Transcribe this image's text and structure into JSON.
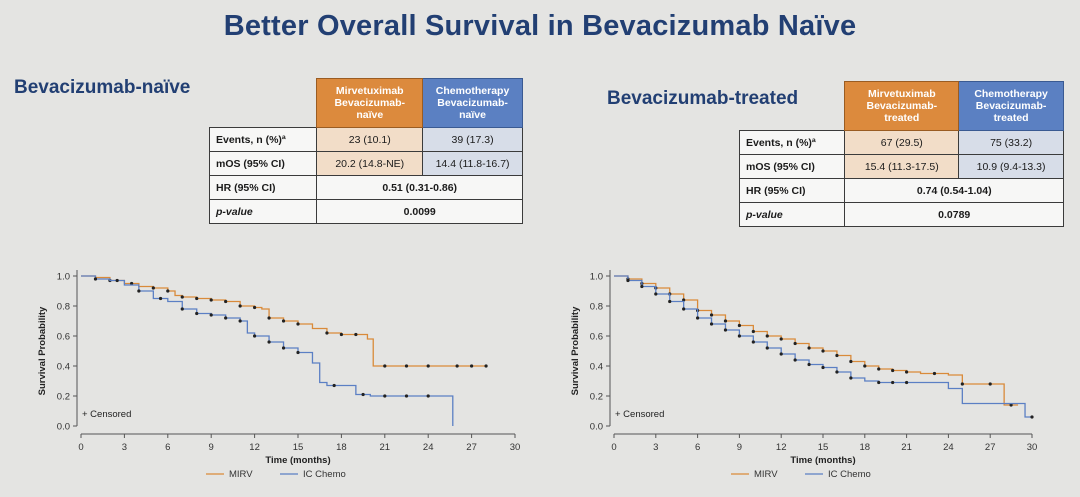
{
  "title": "Better Overall Survival in Bevacizumab Naïve",
  "colors": {
    "mirv": "#d98a3a",
    "chemo": "#5b7fc4",
    "title": "#223f73",
    "bg": "#e4e4e2"
  },
  "left": {
    "section_title": "Bevacizumab-naïve",
    "table": {
      "header_mirv": [
        "Mirvetuximab",
        "Bevacizumab-",
        "naïve"
      ],
      "header_chemo": [
        "Chemotherapy",
        "Bevacizumab-",
        "naïve"
      ],
      "rows": [
        {
          "label": "Events, n (%)ª",
          "mirv": "23 (10.1)",
          "chemo": "39 (17.3)"
        },
        {
          "label": "mOS (95% CI)",
          "mirv": "20.2 (14.8-NE)",
          "chemo": "14.4 (11.8-16.7)"
        }
      ],
      "hr_label": "HR (95% CI)",
      "hr_value": "0.51 (0.31-0.86)",
      "p_label": "p-value",
      "p_value": "0.0099"
    }
  },
  "right": {
    "section_title": "Bevacizumab-treated",
    "table": {
      "header_mirv": [
        "Mirvetuximab",
        "Bevacizumab-",
        "treated"
      ],
      "header_chemo": [
        "Chemotherapy",
        "Bevacizumab-",
        "treated"
      ],
      "rows": [
        {
          "label": "Events, n (%)ª",
          "mirv": "67 (29.5)",
          "chemo": "75 (33.2)"
        },
        {
          "label": "mOS (95% CI)",
          "mirv": "15.4 (11.3-17.5)",
          "chemo": "10.9 (9.4-13.3)"
        }
      ],
      "hr_label": "HR (95% CI)",
      "hr_value": "0.74 (0.54-1.04)",
      "p_label": "p-value",
      "p_value": "0.0789"
    }
  },
  "chart_data": [
    {
      "type": "line",
      "title": "Bevacizumab-naïve",
      "xlabel": "Time (months)",
      "ylabel": "Survival Probability",
      "xlim": [
        0,
        30
      ],
      "ylim": [
        0,
        1.0
      ],
      "xticks": [
        0,
        3,
        6,
        9,
        12,
        15,
        18,
        21,
        24,
        27,
        30
      ],
      "yticks": [
        0.0,
        0.2,
        0.4,
        0.6,
        0.8,
        1.0
      ],
      "censored_label": "Censored",
      "legend": [
        "MIRV",
        "IC Chemo"
      ],
      "series": [
        {
          "name": "MIRV",
          "color": "#d98a3a",
          "x": [
            0,
            1,
            2,
            3,
            4,
            5,
            6,
            6.5,
            7,
            8,
            9,
            10,
            11,
            12,
            12.5,
            13,
            14,
            15,
            16,
            17,
            18,
            19,
            19.8,
            20.2,
            21,
            24,
            26,
            28
          ],
          "y": [
            1.0,
            0.99,
            0.97,
            0.95,
            0.93,
            0.92,
            0.9,
            0.87,
            0.86,
            0.85,
            0.84,
            0.83,
            0.8,
            0.79,
            0.78,
            0.72,
            0.7,
            0.68,
            0.65,
            0.62,
            0.61,
            0.61,
            0.58,
            0.4,
            0.4,
            0.4,
            0.4,
            0.4
          ],
          "censored_x": [
            2,
            3.5,
            5,
            6,
            7,
            8,
            9,
            10,
            11,
            12,
            13,
            14,
            15,
            17,
            18,
            19,
            21,
            22.5,
            24,
            26,
            27,
            28
          ]
        },
        {
          "name": "IC Chemo",
          "color": "#5b7fc4",
          "x": [
            0,
            1,
            2,
            3,
            4,
            5,
            6,
            7,
            8,
            9,
            10,
            11,
            11.5,
            12,
            13,
            14,
            15,
            16,
            16.5,
            17,
            18,
            19,
            20,
            21,
            23,
            25,
            25.6,
            25.7
          ],
          "y": [
            1.0,
            0.98,
            0.97,
            0.94,
            0.9,
            0.85,
            0.83,
            0.78,
            0.75,
            0.74,
            0.72,
            0.7,
            0.62,
            0.6,
            0.56,
            0.52,
            0.49,
            0.42,
            0.29,
            0.27,
            0.27,
            0.21,
            0.2,
            0.2,
            0.2,
            0.2,
            0.2,
            0.0
          ],
          "censored_x": [
            1,
            2.5,
            4,
            5.5,
            7,
            8,
            9,
            10,
            11,
            12,
            13,
            14,
            15,
            17.5,
            19.5,
            21,
            22.5,
            24
          ]
        }
      ]
    },
    {
      "type": "line",
      "title": "Bevacizumab-treated",
      "xlabel": "Time (months)",
      "ylabel": "Survival Probability",
      "xlim": [
        0,
        30
      ],
      "ylim": [
        0,
        1.0
      ],
      "xticks": [
        0,
        3,
        6,
        9,
        12,
        15,
        18,
        21,
        24,
        27,
        30
      ],
      "yticks": [
        0.0,
        0.2,
        0.4,
        0.6,
        0.8,
        1.0
      ],
      "censored_label": "Censored",
      "legend": [
        "MIRV",
        "IC Chemo"
      ],
      "series": [
        {
          "name": "MIRV",
          "color": "#d98a3a",
          "x": [
            0,
            1,
            2,
            3,
            4,
            5,
            6,
            7,
            8,
            9,
            10,
            11,
            12,
            13,
            14,
            15,
            16,
            17,
            18,
            19,
            20,
            21,
            22,
            23,
            24,
            25,
            26,
            27,
            28,
            28.5,
            29
          ],
          "y": [
            1.0,
            0.98,
            0.95,
            0.92,
            0.88,
            0.84,
            0.77,
            0.74,
            0.7,
            0.67,
            0.63,
            0.6,
            0.58,
            0.55,
            0.52,
            0.5,
            0.47,
            0.43,
            0.4,
            0.38,
            0.37,
            0.36,
            0.35,
            0.35,
            0.34,
            0.28,
            0.28,
            0.28,
            0.14,
            0.14,
            0.14
          ],
          "censored_x": [
            1,
            2,
            3,
            4,
            5,
            6,
            7,
            8,
            9,
            10,
            11,
            12,
            13,
            14,
            15,
            16,
            17,
            18,
            19,
            20,
            21,
            23,
            25,
            27,
            28.5
          ]
        },
        {
          "name": "IC Chemo",
          "color": "#5b7fc4",
          "x": [
            0,
            1,
            2,
            3,
            4,
            5,
            6,
            7,
            8,
            9,
            10,
            11,
            12,
            13,
            14,
            15,
            16,
            17,
            18,
            19,
            20,
            21,
            22,
            23,
            24,
            25,
            26,
            27,
            28,
            29,
            29.5,
            30
          ],
          "y": [
            1.0,
            0.97,
            0.93,
            0.88,
            0.83,
            0.78,
            0.72,
            0.68,
            0.64,
            0.6,
            0.56,
            0.52,
            0.48,
            0.44,
            0.41,
            0.39,
            0.36,
            0.32,
            0.3,
            0.29,
            0.29,
            0.29,
            0.29,
            0.29,
            0.25,
            0.15,
            0.15,
            0.15,
            0.15,
            0.15,
            0.06,
            0.06
          ],
          "censored_x": [
            1,
            2,
            3,
            4,
            5,
            6,
            7,
            8,
            9,
            10,
            11,
            12,
            13,
            14,
            15,
            16,
            17,
            19,
            20,
            21,
            30
          ]
        }
      ]
    }
  ]
}
